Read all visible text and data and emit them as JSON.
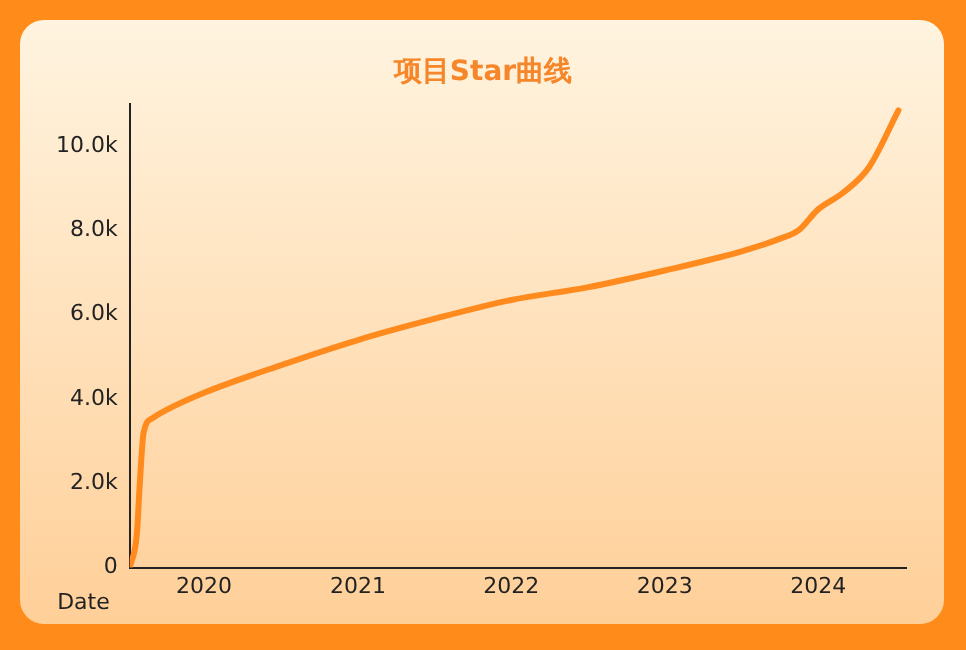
{
  "chart_data": {
    "type": "line",
    "title": "项目Star曲线",
    "xlabel": "Date",
    "series": [
      {
        "color": "#ff8a1e",
        "x": [
          "2019-07-08",
          "2019-07-25",
          "2019-08-01",
          "2019-08-10",
          "2019-09-01",
          "2019-10-15",
          "2020-01-01",
          "2020-07-01",
          "2021-01-01",
          "2021-07-01",
          "2022-01-01",
          "2022-07-01",
          "2023-01-01",
          "2023-07-01",
          "2023-10-01",
          "2023-11-15",
          "2024-01-01",
          "2024-03-01",
          "2024-05-01",
          "2024-07-10"
        ],
        "values": [
          0,
          800,
          2000,
          3200,
          3550,
          3800,
          4150,
          4800,
          5400,
          5900,
          6350,
          6650,
          7050,
          7500,
          7800,
          8000,
          8500,
          8900,
          9500,
          10850
        ]
      }
    ],
    "xlim": [
      "2019-07-08",
      "2024-07-28"
    ],
    "xticks": [
      "2020",
      "2021",
      "2022",
      "2023",
      "2024"
    ],
    "ylim": [
      0,
      11000
    ],
    "yticks": [
      0,
      {
        "value": 2000,
        "label": "2.0k"
      },
      {
        "value": 4000,
        "label": "4.0k"
      },
      {
        "value": 6000,
        "label": "6.0k"
      },
      {
        "value": 8000,
        "label": "8.0k"
      },
      {
        "value": 10000,
        "label": "10.0k"
      }
    ],
    "grid": false,
    "legend": false,
    "marker": "none",
    "line_style": "solid"
  }
}
